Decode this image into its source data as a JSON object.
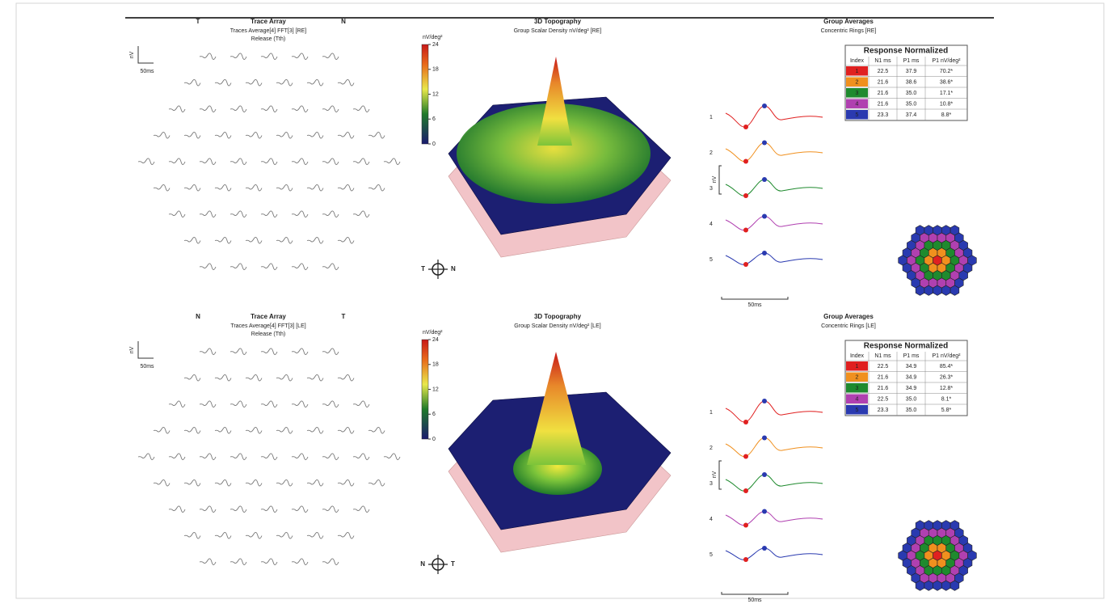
{
  "panels": [
    {
      "trace_array": {
        "left_label": "T",
        "title": "Trace Array",
        "right_label": "N",
        "subtitle": [
          "Traces Average[4] FFT[3] [RE]",
          "Release (Tth)"
        ],
        "amplitude_unit": "nV",
        "time_scale": "50ms"
      },
      "topography": {
        "title": "3D Topography",
        "subtitle": "Group Scalar Density nV/deg² [RE]",
        "colorbar_unit": "nV/deg²",
        "colorbar_ticks": [
          0,
          6,
          12,
          18,
          24
        ],
        "orientation": {
          "left": "T",
          "right": "N"
        }
      },
      "group_averages": {
        "title": "Group Averages",
        "subtitle": "Concentric Rings [RE]",
        "ring_labels": [
          "1",
          "2",
          "3",
          "4",
          "5"
        ],
        "amplitude_unit": "nV",
        "time_scale": "50ms",
        "table": {
          "title": "Response Normalized",
          "headers": [
            "Index",
            "N1 ms",
            "P1 ms",
            "P1 nV/deg²"
          ],
          "rows": [
            [
              "1",
              "22.5",
              "37.9",
              "70.2*"
            ],
            [
              "2",
              "21.6",
              "38.6",
              "38.6*"
            ],
            [
              "3",
              "21.6",
              "35.0",
              "17.1*"
            ],
            [
              "4",
              "21.6",
              "35.0",
              "10.8*"
            ],
            [
              "5",
              "23.3",
              "37.4",
              "8.8*"
            ]
          ]
        }
      }
    },
    {
      "trace_array": {
        "left_label": "N",
        "title": "Trace Array",
        "right_label": "T",
        "subtitle": [
          "Traces Average[4] FFT[3] [LE]",
          "Release (Tth)"
        ],
        "amplitude_unit": "nV",
        "time_scale": "50ms"
      },
      "topography": {
        "title": "3D Topography",
        "subtitle": "Group Scalar Density nV/deg² [LE]",
        "colorbar_unit": "nV/deg²",
        "colorbar_ticks": [
          0,
          6,
          12,
          18,
          24
        ],
        "orientation": {
          "left": "N",
          "right": "T"
        }
      },
      "group_averages": {
        "title": "Group Averages",
        "subtitle": "Concentric Rings [LE]",
        "ring_labels": [
          "1",
          "2",
          "3",
          "4",
          "5"
        ],
        "amplitude_unit": "nV",
        "time_scale": "50ms",
        "table": {
          "title": "Response Normalized",
          "headers": [
            "Index",
            "N1 ms",
            "P1 ms",
            "P1 nV/deg²"
          ],
          "rows": [
            [
              "1",
              "22.5",
              "34.9",
              "85.4*"
            ],
            [
              "2",
              "21.6",
              "34.9",
              "26.3*"
            ],
            [
              "3",
              "21.6",
              "34.9",
              "12.8*"
            ],
            [
              "4",
              "22.5",
              "35.0",
              "8.1*"
            ],
            [
              "5",
              "23.3",
              "35.0",
              "5.8*"
            ]
          ]
        }
      }
    }
  ]
}
